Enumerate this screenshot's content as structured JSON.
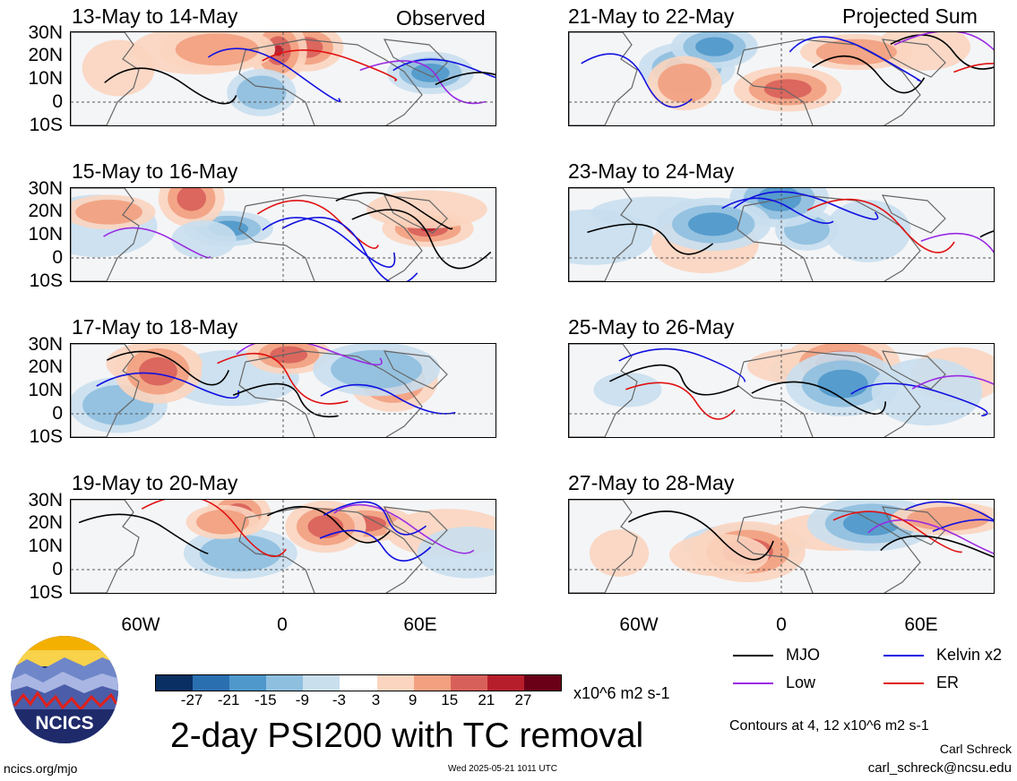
{
  "panels": {
    "left": [
      {
        "title": "13-May to 14-May",
        "tag": "Observed"
      },
      {
        "title": "15-May to 16-May",
        "tag": ""
      },
      {
        "title": "17-May to 18-May",
        "tag": ""
      },
      {
        "title": "19-May to 20-May",
        "tag": ""
      }
    ],
    "right": [
      {
        "title": "21-May to 22-May",
        "tag": "Projected Sum"
      },
      {
        "title": "23-May to 24-May",
        "tag": ""
      },
      {
        "title": "25-May to 26-May",
        "tag": ""
      },
      {
        "title": "27-May to 28-May",
        "tag": ""
      }
    ]
  },
  "lat_labels": [
    "30N",
    "20N",
    "10N",
    "0",
    "10S"
  ],
  "lon_labels": [
    "60W",
    "0",
    "60E"
  ],
  "colorbar": {
    "labels": [
      "-27",
      "-21",
      "-15",
      "-9",
      "-3",
      "3",
      "9",
      "15",
      "21",
      "27"
    ],
    "colors": [
      "#0a2f62",
      "#2a6fb0",
      "#4f98cb",
      "#8fbfdf",
      "#c9dfee",
      "#ffffff",
      "#fbd5bf",
      "#f2a07f",
      "#d8605a",
      "#b71e2c",
      "#6a0018"
    ],
    "units": "x10^6 m2 s-1"
  },
  "legend": [
    {
      "name": "MJO",
      "color": "#000000"
    },
    {
      "name": "Kelvin x2",
      "color": "#1010e0"
    },
    {
      "name": "Low",
      "color": "#9a2be2"
    },
    {
      "name": "ER",
      "color": "#e01010"
    }
  ],
  "contours_note": "Contours at 4, 12 x10^6 m2 s-1",
  "main_title": "2-day PSI200 with TC removal",
  "logo_text": "NCICS",
  "footer": {
    "left": "ncics.org/mjo",
    "center": "Wed 2025-05-21 1011 UTC",
    "author": "Carl Schreck",
    "email": "carl_schreck@ncsu.edu"
  }
}
